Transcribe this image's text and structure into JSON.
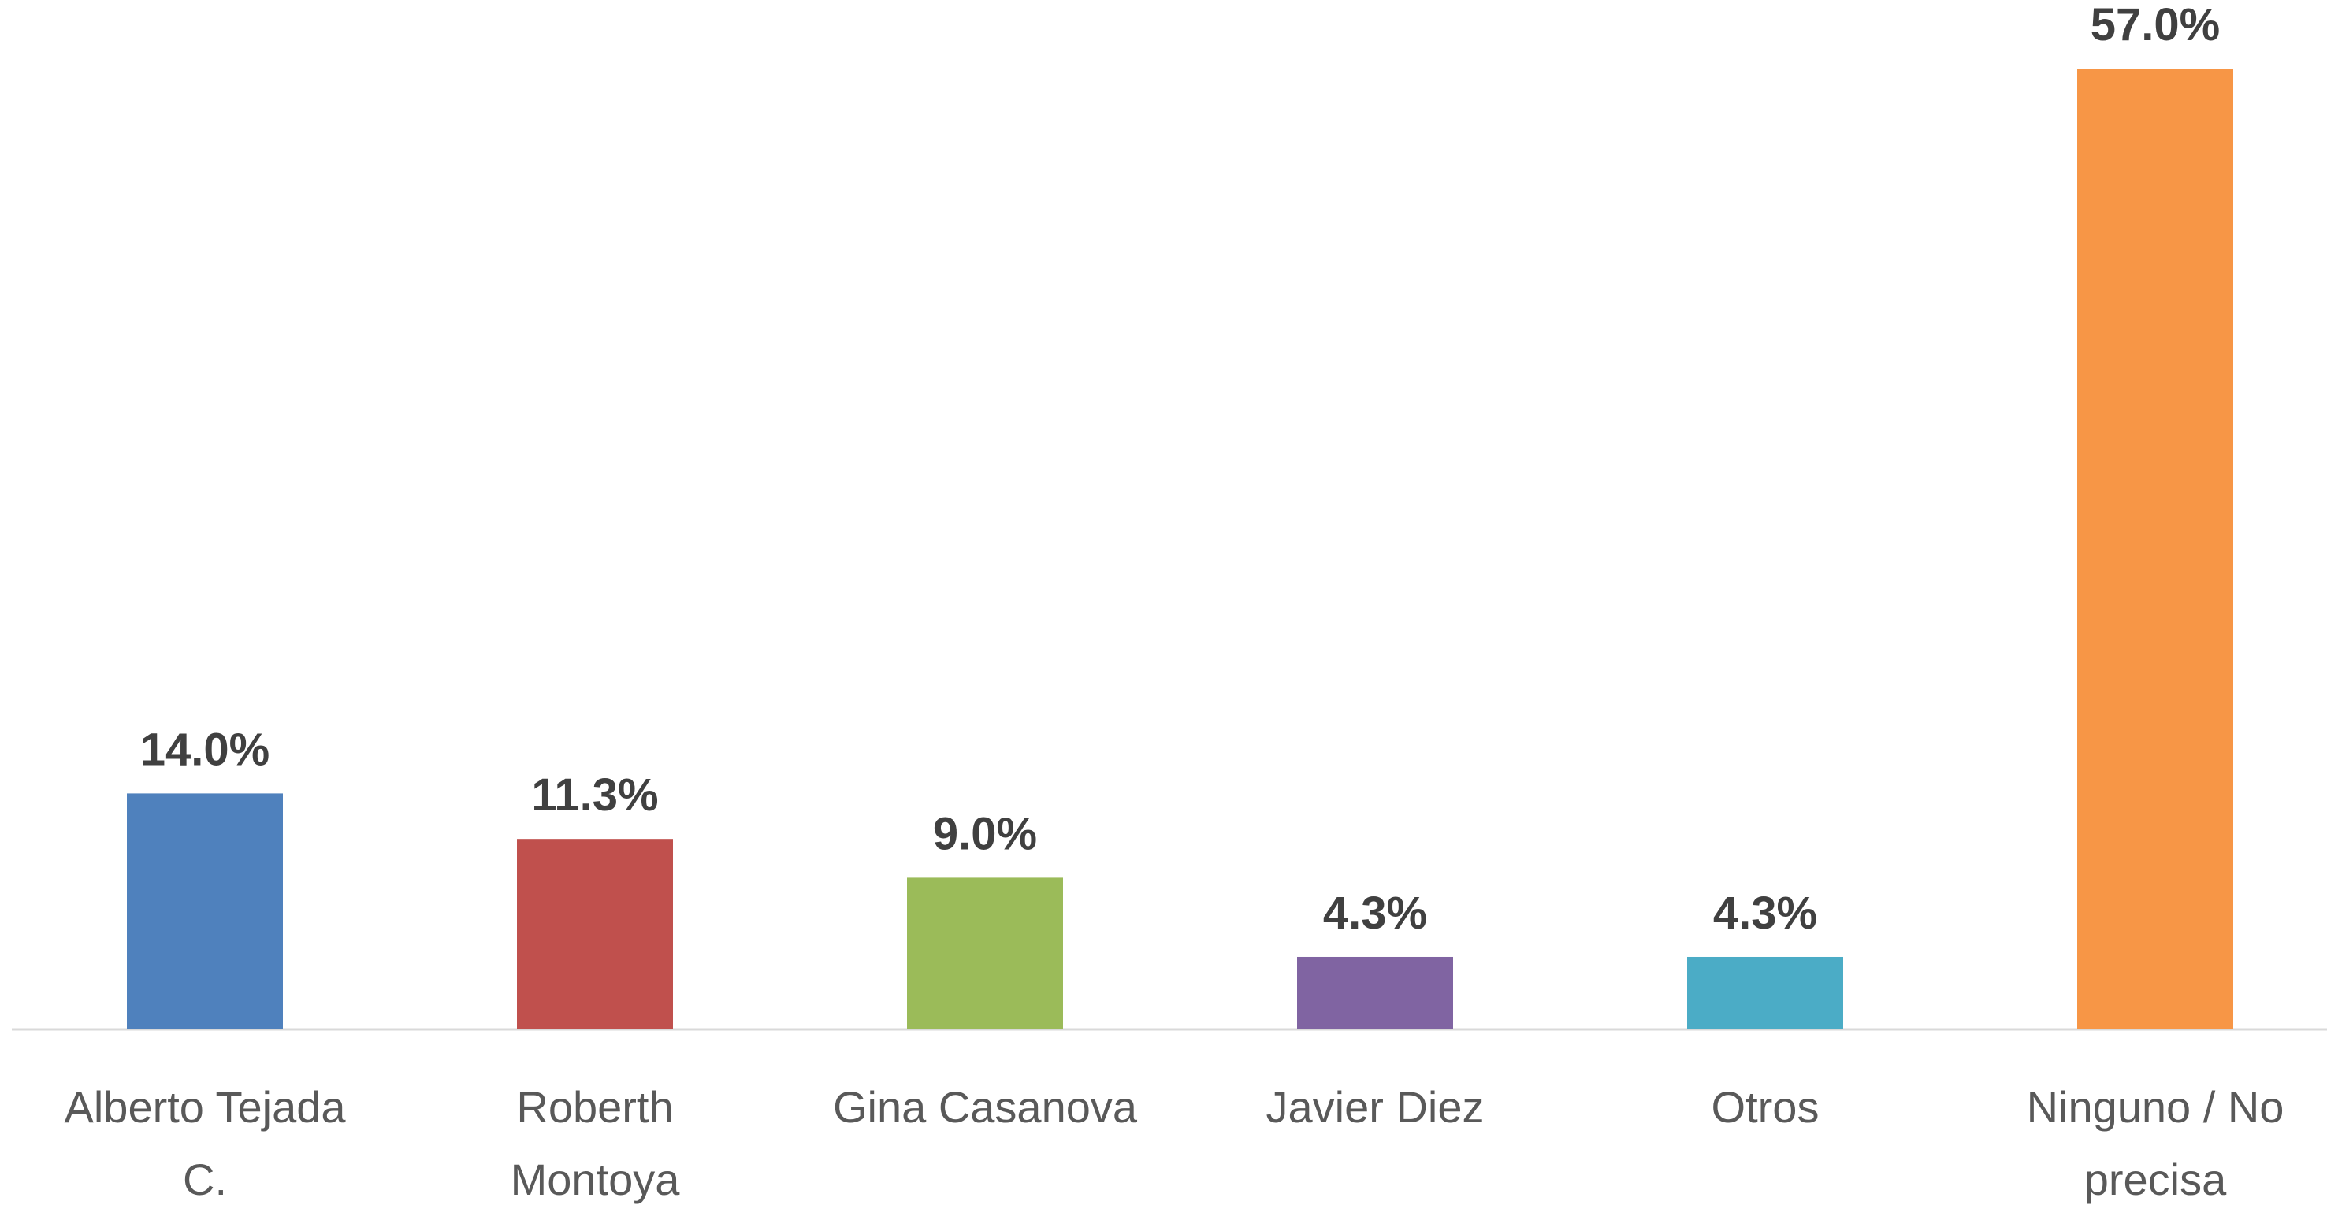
{
  "chart_data": {
    "type": "bar",
    "categories": [
      "Alberto Tejada C.",
      "Roberth Montoya",
      "Gina Casanova",
      "Javier Diez",
      "Otros",
      "Ninguno / No precisa"
    ],
    "values": [
      14.0,
      11.3,
      9.0,
      4.3,
      4.3,
      57.0
    ],
    "value_labels": [
      "14.0%",
      "11.3%",
      "9.0%",
      "4.3%",
      "4.3%",
      "57.0%"
    ],
    "colors": [
      "#4f81bd",
      "#c0504d",
      "#9bbb59",
      "#8064a2",
      "#4bacc6",
      "#f79646"
    ],
    "ylim": [
      0,
      60
    ],
    "grid": false
  }
}
